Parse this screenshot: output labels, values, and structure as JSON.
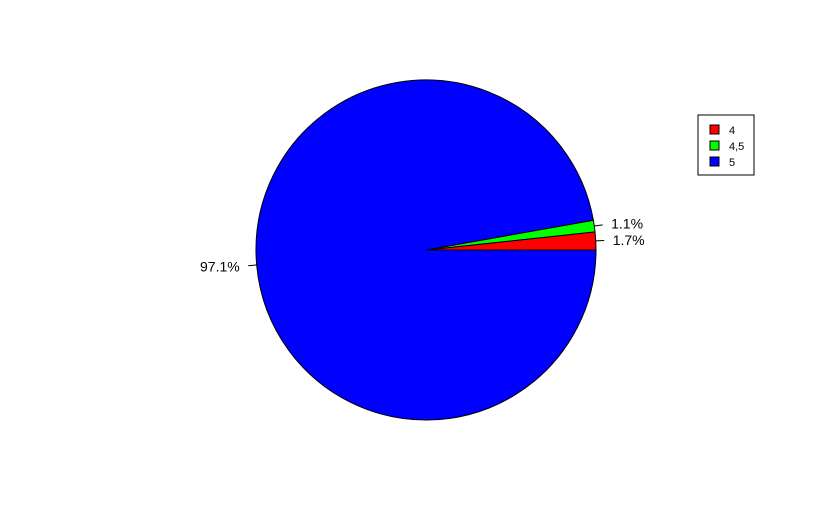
{
  "chart_data": {
    "type": "pie",
    "title": "",
    "slices": [
      {
        "label": "1.7%",
        "value": 1.7,
        "color": "#FF0000",
        "legend": "4"
      },
      {
        "label": "1.1%",
        "value": 1.1,
        "color": "#00FF00",
        "legend": "4,5"
      },
      {
        "label": "97.1%",
        "value": 97.1,
        "color": "#0000FF",
        "legend": "5"
      }
    ],
    "direction": "counterclockwise",
    "legend_position": "right"
  }
}
